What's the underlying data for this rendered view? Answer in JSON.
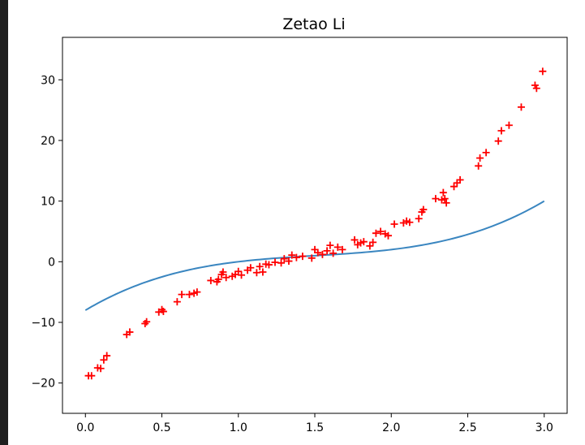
{
  "chart_data": {
    "type": "scatter",
    "title": "Zetao Li",
    "xlabel": "",
    "ylabel": "",
    "xlim": [
      -0.15,
      3.15
    ],
    "ylim": [
      -25,
      37
    ],
    "grid": false,
    "x_ticks": [
      0.0,
      0.5,
      1.0,
      1.5,
      2.0,
      2.5,
      3.0
    ],
    "x_tick_labels": [
      "0.0",
      "0.5",
      "1.0",
      "1.5",
      "2.0",
      "2.5",
      "3.0"
    ],
    "y_ticks": [
      -20,
      -10,
      0,
      10,
      20,
      30
    ],
    "y_tick_labels": [
      "−20",
      "−10",
      "0",
      "10",
      "20",
      "30"
    ],
    "series": [
      {
        "kind": "scatter",
        "marker": "+",
        "color": "#ff0000",
        "points": [
          [
            0.02,
            -18.8
          ],
          [
            0.04,
            -18.8
          ],
          [
            0.08,
            -17.5
          ],
          [
            0.1,
            -17.6
          ],
          [
            0.12,
            -16.2
          ],
          [
            0.14,
            -15.5
          ],
          [
            0.27,
            -12.0
          ],
          [
            0.29,
            -11.6
          ],
          [
            0.39,
            -10.2
          ],
          [
            0.4,
            -9.9
          ],
          [
            0.48,
            -8.3
          ],
          [
            0.5,
            -7.9
          ],
          [
            0.51,
            -8.2
          ],
          [
            0.6,
            -6.6
          ],
          [
            0.63,
            -5.4
          ],
          [
            0.68,
            -5.4
          ],
          [
            0.71,
            -5.2
          ],
          [
            0.73,
            -5.0
          ],
          [
            0.82,
            -3.1
          ],
          [
            0.86,
            -3.3
          ],
          [
            0.87,
            -2.9
          ],
          [
            0.89,
            -2.1
          ],
          [
            0.9,
            -1.7
          ],
          [
            0.92,
            -2.6
          ],
          [
            0.96,
            -2.4
          ],
          [
            0.98,
            -2.1
          ],
          [
            1.0,
            -1.6
          ],
          [
            1.02,
            -2.2
          ],
          [
            1.06,
            -1.4
          ],
          [
            1.08,
            -1.0
          ],
          [
            1.12,
            -1.8
          ],
          [
            1.14,
            -0.8
          ],
          [
            1.16,
            -1.7
          ],
          [
            1.18,
            -0.4
          ],
          [
            1.2,
            -0.5
          ],
          [
            1.24,
            -0.1
          ],
          [
            1.28,
            -0.2
          ],
          [
            1.3,
            0.5
          ],
          [
            1.33,
            0.1
          ],
          [
            1.35,
            1.1
          ],
          [
            1.38,
            0.7
          ],
          [
            1.42,
            0.9
          ],
          [
            1.48,
            0.6
          ],
          [
            1.5,
            2.0
          ],
          [
            1.52,
            1.5
          ],
          [
            1.55,
            1.2
          ],
          [
            1.58,
            1.8
          ],
          [
            1.6,
            2.7
          ],
          [
            1.62,
            1.4
          ],
          [
            1.65,
            2.4
          ],
          [
            1.68,
            2.0
          ],
          [
            1.76,
            3.6
          ],
          [
            1.78,
            2.8
          ],
          [
            1.8,
            3.1
          ],
          [
            1.82,
            3.3
          ],
          [
            1.86,
            2.6
          ],
          [
            1.88,
            3.2
          ],
          [
            1.9,
            4.7
          ],
          [
            1.93,
            5.0
          ],
          [
            1.96,
            4.6
          ],
          [
            1.98,
            4.3
          ],
          [
            2.02,
            6.2
          ],
          [
            2.08,
            6.4
          ],
          [
            2.1,
            6.7
          ],
          [
            2.12,
            6.5
          ],
          [
            2.18,
            7.1
          ],
          [
            2.2,
            8.2
          ],
          [
            2.21,
            8.6
          ],
          [
            2.29,
            10.4
          ],
          [
            2.33,
            10.2
          ],
          [
            2.34,
            11.4
          ],
          [
            2.35,
            10.4
          ],
          [
            2.36,
            9.7
          ],
          [
            2.41,
            12.4
          ],
          [
            2.43,
            13.0
          ],
          [
            2.45,
            13.5
          ],
          [
            2.57,
            15.8
          ],
          [
            2.58,
            17.1
          ],
          [
            2.62,
            18.0
          ],
          [
            2.7,
            19.9
          ],
          [
            2.72,
            21.6
          ],
          [
            2.77,
            22.5
          ],
          [
            2.85,
            25.5
          ],
          [
            2.94,
            29.1
          ],
          [
            2.95,
            28.6
          ],
          [
            2.99,
            31.4
          ]
        ]
      },
      {
        "kind": "line",
        "color": "#3a86c0",
        "function": "y = 2*(x - 1.5)^3 + 1.5*(x - 1.5) + 1",
        "x_range": [
          0.0,
          3.0
        ]
      }
    ]
  }
}
